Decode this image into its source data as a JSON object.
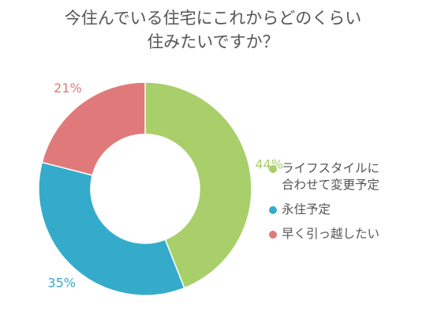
{
  "chart_data": {
    "type": "pie",
    "variant": "donut",
    "title_lines": [
      "今住んでいる住宅にこれからどのくらい",
      "住みたいですか？"
    ],
    "categories": [
      "ライフスタイルに合わせて変更予定",
      "永住予定",
      "早く引っ越したい"
    ],
    "legend_lines": [
      [
        "ライフスタイルに",
        "合わせて変更予定"
      ],
      [
        "永住予定"
      ],
      [
        "早く引っ越したい"
      ]
    ],
    "values": [
      44,
      35,
      21
    ],
    "data_labels": [
      "44%",
      "35%",
      "21%"
    ],
    "colors": [
      "#a8cf6a",
      "#35abcb",
      "#e07a7a"
    ],
    "legend_position": "right"
  }
}
